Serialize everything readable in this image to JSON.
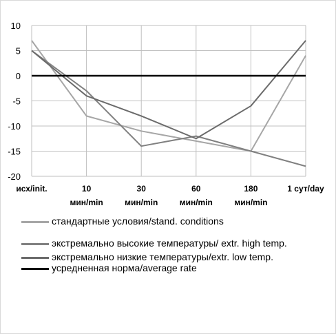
{
  "chart_data": {
    "type": "line",
    "categories": [
      "исх/init.",
      "10 мин/min",
      "30 мин/min",
      "60 мин/min",
      "180 мин/min",
      "1 сут/day"
    ],
    "category_lines": [
      [
        "исх/init."
      ],
      [
        "10",
        "мин/min"
      ],
      [
        "30",
        "мин/min"
      ],
      [
        "60",
        "мин/min"
      ],
      [
        "180",
        "мин/min"
      ],
      [
        "1 сут/day"
      ]
    ],
    "y_ticks": [
      "10",
      "5",
      "0",
      "-5",
      "-10",
      "-15",
      "-20"
    ],
    "ylim": [
      -20,
      10
    ],
    "y_step": 5,
    "grid": true,
    "legend_position": "bottom",
    "series": [
      {
        "name": "стандартные условия/stand. conditions",
        "color": "#a6a6a6",
        "width": 2,
        "values": [
          7,
          -8,
          -11,
          -13,
          -15,
          4
        ]
      },
      {
        "name": "экстремально высокие температуры/ extr. high temp.",
        "color": "#808080",
        "width": 2,
        "values": [
          5,
          -3,
          -14,
          -12,
          -15,
          -18
        ]
      },
      {
        "name": "экстремально низкие температуры/extr. low temp.",
        "color": "#6b6b6b",
        "width": 2,
        "values": [
          5,
          -4,
          -8,
          -12.5,
          -6,
          7
        ]
      },
      {
        "name": "усредненная норма/average rate",
        "color": "#000000",
        "width": 2.5,
        "values": [
          0,
          0,
          0,
          0,
          0,
          0
        ]
      }
    ]
  }
}
